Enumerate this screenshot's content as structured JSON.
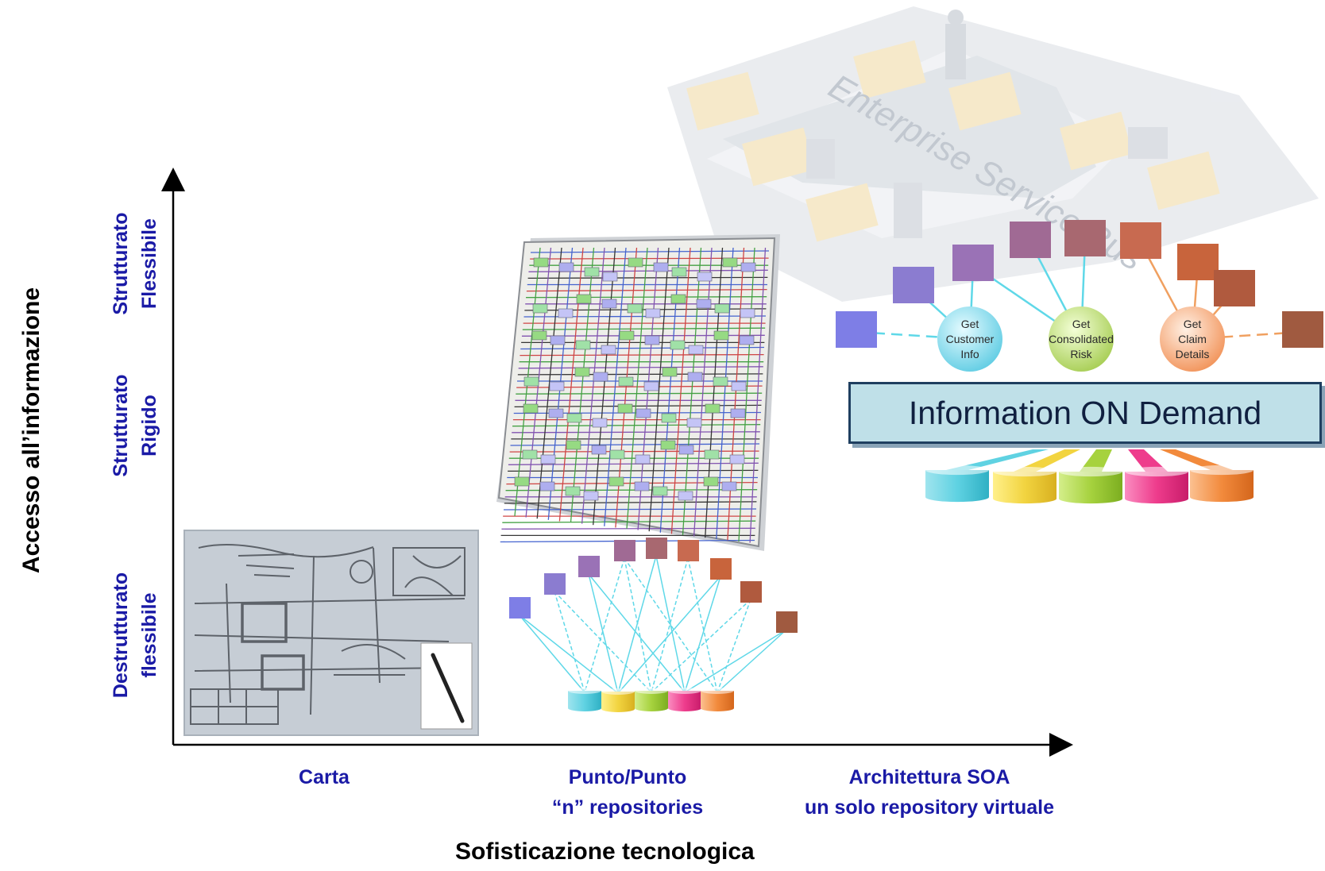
{
  "axes": {
    "x_title": "Sofisticazione tecnologica",
    "y_title": "Accesso all’informazione"
  },
  "y_levels": [
    {
      "line1": "Destrutturato",
      "line2": "flessibile"
    },
    {
      "line1": "Strutturato",
      "line2": "Rigido"
    },
    {
      "line1": "Strutturato",
      "line2": "Flessibile"
    }
  ],
  "x_levels": [
    {
      "line1": "Carta",
      "line2": ""
    },
    {
      "line1": "Punto/Punto",
      "line2": "“n” repositories"
    },
    {
      "line1": "Architettura SOA",
      "line2": "un solo repository virtuale"
    }
  ],
  "soa": {
    "bus_label": "Enterprise Service Bus",
    "info_box": "Information ON Demand",
    "services": [
      {
        "lines": [
          "Get",
          "Customer",
          "Info"
        ],
        "color": "#5ec8e0"
      },
      {
        "lines": [
          "Get",
          "Consolidated",
          "Risk"
        ],
        "color": "#a8cc50"
      },
      {
        "lines": [
          "Get",
          "Claim",
          "Details"
        ],
        "color": "#ee8a4a"
      }
    ]
  },
  "palette": {
    "axis": "#000000",
    "label_blue": "#1a1aa6",
    "connector": "#5fd8e8",
    "squares": [
      "#7e7ee6",
      "#8b7cd0",
      "#9a72b6",
      "#a06a94",
      "#a86870",
      "#c86a50",
      "#c8643c",
      "#b05a3e",
      "#a05a40"
    ],
    "drums": [
      "#5fd2e2",
      "#f2d440",
      "#a6d23e",
      "#ee3c8c",
      "#f28a3c"
    ]
  }
}
